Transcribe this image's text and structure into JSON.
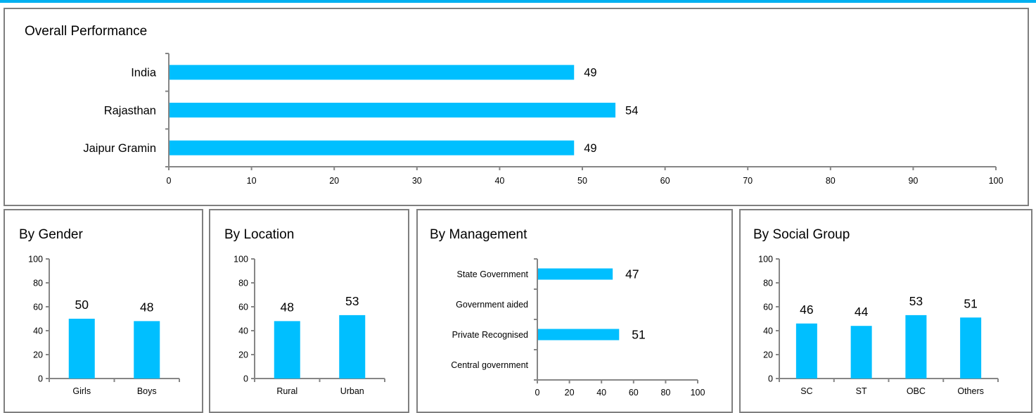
{
  "colors": {
    "bar": "#00bfff",
    "accent_line": "#00b0f0",
    "axis": "#868686",
    "border": "#7f7f7f"
  },
  "chart_data": [
    {
      "id": "overall",
      "type": "bar",
      "orientation": "horizontal",
      "title": "Overall Performance",
      "categories": [
        "India",
        "Rajasthan",
        "Jaipur Gramin"
      ],
      "values": [
        49,
        54,
        49
      ],
      "xlim": [
        0,
        100
      ],
      "ticks": [
        0,
        10,
        20,
        30,
        40,
        50,
        60,
        70,
        80,
        90,
        100
      ],
      "data_labels": true,
      "grid": false
    },
    {
      "id": "gender",
      "type": "bar",
      "orientation": "vertical",
      "title": "By Gender",
      "categories": [
        "Girls",
        "Boys"
      ],
      "values": [
        50,
        48
      ],
      "ylim": [
        0,
        100
      ],
      "ticks": [
        0,
        20,
        40,
        60,
        80,
        100
      ],
      "data_labels": true,
      "grid": false
    },
    {
      "id": "location",
      "type": "bar",
      "orientation": "vertical",
      "title": "By Location",
      "categories": [
        "Rural",
        "Urban"
      ],
      "values": [
        48,
        53
      ],
      "ylim": [
        0,
        100
      ],
      "ticks": [
        0,
        20,
        40,
        60,
        80,
        100
      ],
      "data_labels": true,
      "grid": false
    },
    {
      "id": "management",
      "type": "bar",
      "orientation": "horizontal",
      "title": "By Management",
      "categories": [
        "State Government",
        "Government aided",
        "Private Recognised",
        "Central government"
      ],
      "values": [
        47,
        null,
        51,
        null
      ],
      "xlim": [
        0,
        100
      ],
      "ticks": [
        0,
        20,
        40,
        60,
        80,
        100
      ],
      "data_labels": true,
      "grid": false
    },
    {
      "id": "social",
      "type": "bar",
      "orientation": "vertical",
      "title": "By Social Group",
      "categories": [
        "SC",
        "ST",
        "OBC",
        "Others"
      ],
      "values": [
        46,
        44,
        53,
        51
      ],
      "ylim": [
        0,
        100
      ],
      "ticks": [
        0,
        20,
        40,
        60,
        80,
        100
      ],
      "data_labels": true,
      "grid": false
    }
  ]
}
